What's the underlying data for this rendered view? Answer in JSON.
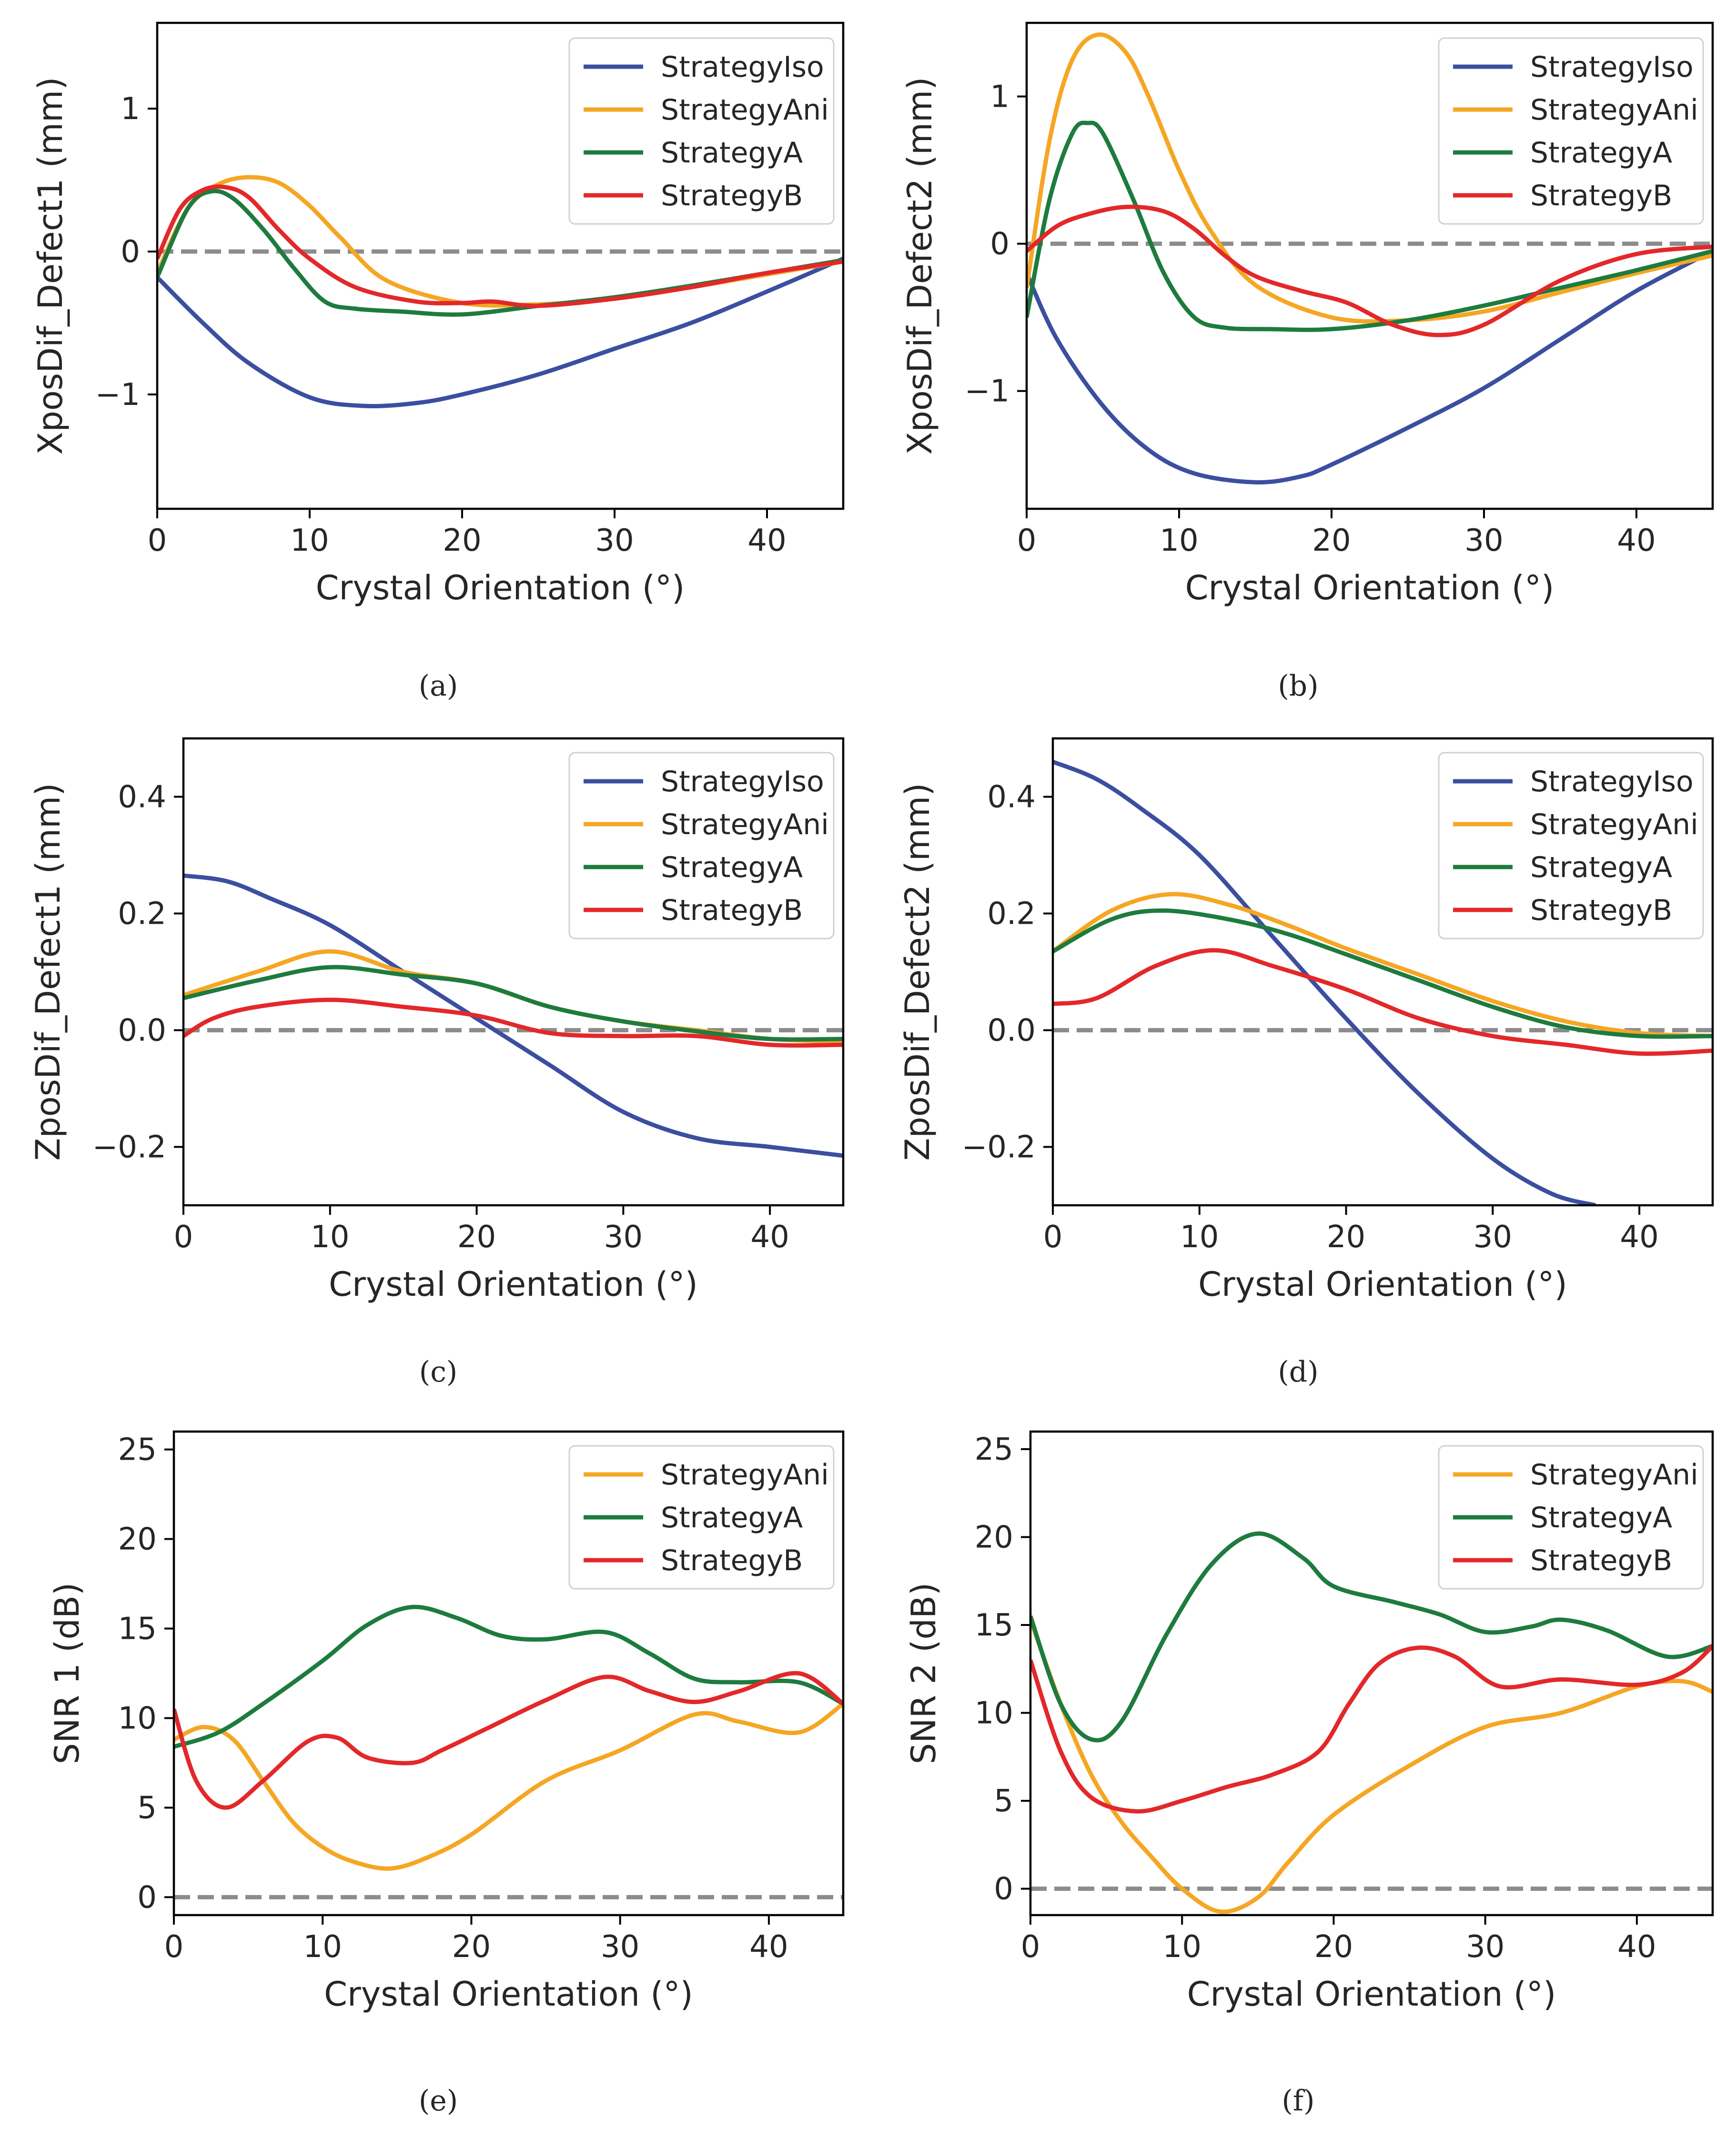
{
  "figure": {
    "panels": [
      "a",
      "b",
      "c",
      "d",
      "e",
      "f"
    ]
  },
  "chart_data": [
    {
      "id": "a",
      "type": "line",
      "caption": "(a)",
      "xlabel": "Crystal Orientation (°)",
      "ylabel": "XposDif_Defect1 (mm)",
      "xlim": [
        0,
        45
      ],
      "ylim": [
        -1.8,
        1.6
      ],
      "xticks": [
        0,
        10,
        20,
        30,
        40
      ],
      "yticks": [
        -1,
        0,
        1
      ],
      "ytick_labels": [
        "−1",
        "0",
        "1"
      ],
      "x_tick_labels": [
        "0",
        "10",
        "20",
        "30",
        "40"
      ],
      "zero_line": 0,
      "legend_position": "top-right",
      "series": [
        {
          "name": "StrategyIso",
          "color": "#3b4fa0",
          "x": [
            0,
            3,
            6,
            10,
            13.5,
            17,
            20,
            25,
            30,
            35,
            40,
            45
          ],
          "y": [
            -0.18,
            -0.5,
            -0.78,
            -1.02,
            -1.08,
            -1.06,
            -1.0,
            -0.86,
            -0.68,
            -0.5,
            -0.28,
            -0.05
          ]
        },
        {
          "name": "StrategyAni",
          "color": "#f5a623",
          "x": [
            0,
            2,
            4,
            6,
            8,
            10,
            12,
            15,
            20,
            25,
            30,
            35,
            40,
            45
          ],
          "y": [
            -0.15,
            0.3,
            0.47,
            0.52,
            0.48,
            0.32,
            0.1,
            -0.2,
            -0.36,
            -0.37,
            -0.33,
            -0.25,
            -0.16,
            -0.07
          ]
        },
        {
          "name": "StrategyA",
          "color": "#1e7b3e",
          "x": [
            0,
            2,
            3.5,
            5,
            7,
            9,
            11,
            13,
            16,
            20,
            25,
            30,
            35,
            40,
            45
          ],
          "y": [
            -0.18,
            0.3,
            0.42,
            0.37,
            0.15,
            -0.12,
            -0.35,
            -0.4,
            -0.42,
            -0.44,
            -0.38,
            -0.32,
            -0.24,
            -0.15,
            -0.06
          ]
        },
        {
          "name": "StrategyB",
          "color": "#e3282a",
          "x": [
            0,
            1.5,
            3,
            4.5,
            6,
            8,
            10,
            13,
            17,
            20,
            22,
            25,
            30,
            35,
            40,
            45
          ],
          "y": [
            -0.05,
            0.3,
            0.43,
            0.45,
            0.38,
            0.15,
            -0.05,
            -0.25,
            -0.35,
            -0.36,
            -0.35,
            -0.38,
            -0.33,
            -0.25,
            -0.15,
            -0.07
          ]
        }
      ]
    },
    {
      "id": "b",
      "type": "line",
      "caption": "(b)",
      "xlabel": "Crystal Orientation (°)",
      "ylabel": "XposDif_Defect2 (mm)",
      "xlim": [
        0,
        45
      ],
      "ylim": [
        -1.8,
        1.5
      ],
      "xticks": [
        0,
        10,
        20,
        30,
        40
      ],
      "yticks": [
        -1,
        0,
        1
      ],
      "ytick_labels": [
        "−1",
        "0",
        "1"
      ],
      "x_tick_labels": [
        "0",
        "10",
        "20",
        "30",
        "40"
      ],
      "zero_line": 0,
      "legend_position": "top-right",
      "series": [
        {
          "name": "StrategyIso",
          "color": "#3b4fa0",
          "x": [
            0,
            2,
            5,
            8,
            11,
            15,
            18,
            20,
            25,
            30,
            35,
            40,
            45
          ],
          "y": [
            -0.2,
            -0.65,
            -1.1,
            -1.4,
            -1.56,
            -1.62,
            -1.58,
            -1.5,
            -1.25,
            -0.98,
            -0.65,
            -0.32,
            -0.05
          ]
        },
        {
          "name": "StrategyAni",
          "color": "#f5a623",
          "x": [
            0,
            1.5,
            3,
            4.7,
            6.5,
            8,
            10,
            12,
            15,
            20,
            25,
            30,
            35,
            40,
            45
          ],
          "y": [
            -0.3,
            0.7,
            1.25,
            1.42,
            1.3,
            1.0,
            0.5,
            0.1,
            -0.28,
            -0.5,
            -0.52,
            -0.46,
            -0.33,
            -0.2,
            -0.08
          ]
        },
        {
          "name": "StrategyA",
          "color": "#1e7b3e",
          "x": [
            0,
            1.5,
            3,
            4,
            5,
            7,
            9,
            11,
            13,
            16,
            20,
            25,
            30,
            35,
            40,
            45
          ],
          "y": [
            -0.5,
            0.3,
            0.75,
            0.82,
            0.75,
            0.3,
            -0.2,
            -0.5,
            -0.57,
            -0.58,
            -0.58,
            -0.52,
            -0.42,
            -0.3,
            -0.18,
            -0.05
          ]
        },
        {
          "name": "StrategyB",
          "color": "#e3282a",
          "x": [
            0,
            2,
            4,
            6.5,
            9,
            11,
            13,
            15,
            18,
            21,
            24,
            27,
            30,
            35,
            40,
            45
          ],
          "y": [
            -0.05,
            0.12,
            0.2,
            0.25,
            0.22,
            0.1,
            -0.08,
            -0.22,
            -0.32,
            -0.4,
            -0.55,
            -0.62,
            -0.55,
            -0.25,
            -0.07,
            -0.02
          ]
        }
      ]
    },
    {
      "id": "c",
      "type": "line",
      "caption": "(c)",
      "xlabel": "Crystal Orientation (°)",
      "ylabel": "ZposDif_Defect1 (mm)",
      "xlim": [
        0,
        45
      ],
      "ylim": [
        -0.3,
        0.5
      ],
      "xticks": [
        0,
        10,
        20,
        30,
        40
      ],
      "yticks": [
        -0.2,
        0.0,
        0.2,
        0.4
      ],
      "ytick_labels": [
        "−0.2",
        "0.0",
        "0.2",
        "0.4"
      ],
      "x_tick_labels": [
        "0",
        "10",
        "20",
        "30",
        "40"
      ],
      "zero_line": 0,
      "legend_position": "top-right",
      "series": [
        {
          "name": "StrategyIso",
          "color": "#3b4fa0",
          "x": [
            0,
            3,
            6,
            10,
            15,
            20,
            25,
            30,
            35,
            40,
            45
          ],
          "y": [
            0.265,
            0.255,
            0.225,
            0.18,
            0.1,
            0.02,
            -0.06,
            -0.14,
            -0.185,
            -0.2,
            -0.215
          ]
        },
        {
          "name": "StrategyAni",
          "color": "#f5a623",
          "x": [
            0,
            5,
            10,
            15,
            20,
            25,
            30,
            35,
            40,
            45
          ],
          "y": [
            0.06,
            0.1,
            0.135,
            0.1,
            0.08,
            0.04,
            0.015,
            0.0,
            -0.015,
            -0.02
          ]
        },
        {
          "name": "StrategyA",
          "color": "#1e7b3e",
          "x": [
            0,
            5,
            10,
            15,
            20,
            25,
            30,
            35,
            40,
            45
          ],
          "y": [
            0.055,
            0.085,
            0.108,
            0.095,
            0.08,
            0.04,
            0.015,
            -0.002,
            -0.015,
            -0.015
          ]
        },
        {
          "name": "StrategyB",
          "color": "#e3282a",
          "x": [
            0,
            2,
            5,
            10,
            15,
            20,
            25,
            30,
            35,
            40,
            45
          ],
          "y": [
            -0.01,
            0.02,
            0.04,
            0.052,
            0.04,
            0.025,
            -0.005,
            -0.01,
            -0.01,
            -0.025,
            -0.025
          ]
        }
      ]
    },
    {
      "id": "d",
      "type": "line",
      "caption": "(d)",
      "xlabel": "Crystal Orientation (°)",
      "ylabel": "ZposDif_Defect2 (mm)",
      "xlim": [
        0,
        45
      ],
      "ylim": [
        -0.3,
        0.5
      ],
      "xticks": [
        0,
        10,
        20,
        30,
        40
      ],
      "yticks": [
        -0.2,
        0.0,
        0.2,
        0.4
      ],
      "ytick_labels": [
        "−0.2",
        "0.0",
        "0.2",
        "0.4"
      ],
      "x_tick_labels": [
        "0",
        "10",
        "20",
        "30",
        "40"
      ],
      "zero_line": 0,
      "legend_position": "top-right",
      "series": [
        {
          "name": "StrategyIso",
          "color": "#3b4fa0",
          "x": [
            0,
            3,
            6,
            10,
            15,
            20,
            25,
            30,
            34,
            37
          ],
          "y": [
            0.46,
            0.43,
            0.38,
            0.3,
            0.16,
            0.02,
            -0.11,
            -0.22,
            -0.28,
            -0.3
          ]
        },
        {
          "name": "StrategyAni",
          "color": "#f5a623",
          "x": [
            0,
            4,
            8,
            12,
            16,
            20,
            25,
            30,
            35,
            40,
            45
          ],
          "y": [
            0.135,
            0.205,
            0.233,
            0.215,
            0.18,
            0.14,
            0.095,
            0.05,
            0.015,
            -0.005,
            -0.01
          ]
        },
        {
          "name": "StrategyA",
          "color": "#1e7b3e",
          "x": [
            0,
            4,
            7.5,
            12,
            16,
            20,
            25,
            30,
            35,
            40,
            45
          ],
          "y": [
            0.135,
            0.19,
            0.205,
            0.19,
            0.165,
            0.13,
            0.085,
            0.04,
            0.005,
            -0.01,
            -0.01
          ]
        },
        {
          "name": "StrategyB",
          "color": "#e3282a",
          "x": [
            0,
            3,
            7,
            11,
            15,
            20,
            25,
            30,
            35,
            40,
            45
          ],
          "y": [
            0.045,
            0.055,
            0.11,
            0.137,
            0.11,
            0.07,
            0.02,
            -0.01,
            -0.025,
            -0.04,
            -0.035
          ]
        }
      ]
    },
    {
      "id": "e",
      "type": "line",
      "caption": "(e)",
      "xlabel": "Crystal Orientation (°)",
      "ylabel": "SNR 1 (dB)",
      "xlim": [
        0,
        45
      ],
      "ylim": [
        -1,
        26
      ],
      "xticks": [
        0,
        10,
        20,
        30,
        40
      ],
      "yticks": [
        0,
        5,
        10,
        15,
        20,
        25
      ],
      "ytick_labels": [
        "0",
        "5",
        "10",
        "15",
        "20",
        "25"
      ],
      "x_tick_labels": [
        "0",
        "10",
        "20",
        "30",
        "40"
      ],
      "zero_line": 0,
      "legend_position": "top-right",
      "series": [
        {
          "name": "StrategyAni",
          "color": "#f5a623",
          "x": [
            0,
            2,
            4,
            6,
            8,
            10,
            12,
            14.5,
            17,
            20,
            25,
            30,
            35,
            38,
            42,
            45
          ],
          "y": [
            8.8,
            9.5,
            8.8,
            6.5,
            4.2,
            2.8,
            2.0,
            1.6,
            2.2,
            3.5,
            6.5,
            8.2,
            10.2,
            9.8,
            9.2,
            10.8
          ]
        },
        {
          "name": "StrategyA",
          "color": "#1e7b3e",
          "x": [
            0,
            3,
            6,
            10,
            13,
            16,
            19,
            22,
            25,
            29,
            32,
            35,
            38,
            42,
            45
          ],
          "y": [
            8.4,
            9.2,
            10.8,
            13.2,
            15.2,
            16.2,
            15.6,
            14.6,
            14.4,
            14.8,
            13.6,
            12.2,
            12.0,
            12.0,
            10.8
          ]
        },
        {
          "name": "StrategyB",
          "color": "#e3282a",
          "x": [
            0,
            1.5,
            3.5,
            6,
            9,
            11,
            13,
            16,
            18,
            21,
            25,
            29,
            32,
            35,
            38,
            42,
            45
          ],
          "y": [
            10.5,
            6.5,
            5.0,
            6.5,
            8.7,
            8.9,
            7.8,
            7.5,
            8.2,
            9.4,
            11.0,
            12.3,
            11.5,
            10.9,
            11.5,
            12.5,
            10.8
          ]
        }
      ]
    },
    {
      "id": "f",
      "type": "line",
      "caption": "(f)",
      "xlabel": "Crystal Orientation (°)",
      "ylabel": "SNR 2 (dB)",
      "xlim": [
        0,
        45
      ],
      "ylim": [
        -1.5,
        26
      ],
      "xticks": [
        0,
        10,
        20,
        30,
        40
      ],
      "yticks": [
        0,
        5,
        10,
        15,
        20,
        25
      ],
      "ytick_labels": [
        "0",
        "5",
        "10",
        "15",
        "20",
        "25"
      ],
      "x_tick_labels": [
        "0",
        "10",
        "20",
        "30",
        "40"
      ],
      "zero_line": 0,
      "legend_position": "top-right",
      "series": [
        {
          "name": "StrategyAni",
          "color": "#f5a623",
          "x": [
            0,
            2,
            4,
            6,
            8,
            10,
            12.5,
            15,
            17,
            20,
            25,
            30,
            35,
            40,
            43,
            45
          ],
          "y": [
            15.3,
            10.5,
            6.5,
            3.8,
            1.8,
            0.0,
            -1.3,
            -0.5,
            1.5,
            4.2,
            7.0,
            9.2,
            10.0,
            11.5,
            11.8,
            11.2
          ]
        },
        {
          "name": "StrategyA",
          "color": "#1e7b3e",
          "x": [
            0,
            2,
            4,
            6,
            9,
            12,
            15,
            18,
            20,
            24,
            27,
            30,
            33,
            35,
            38,
            42,
            45
          ],
          "y": [
            15.5,
            10.5,
            8.5,
            9.5,
            14.5,
            18.5,
            20.2,
            18.8,
            17.2,
            16.3,
            15.6,
            14.6,
            14.9,
            15.3,
            14.7,
            13.2,
            13.8
          ]
        },
        {
          "name": "StrategyB",
          "color": "#e3282a",
          "x": [
            0,
            2,
            4,
            7,
            10,
            13,
            16,
            19,
            21,
            23,
            25.5,
            28,
            31,
            35,
            40,
            43,
            45
          ],
          "y": [
            13.0,
            7.8,
            5.2,
            4.4,
            5.0,
            5.8,
            6.5,
            7.8,
            10.5,
            12.8,
            13.7,
            13.2,
            11.5,
            11.9,
            11.6,
            12.3,
            13.8
          ]
        }
      ]
    }
  ]
}
